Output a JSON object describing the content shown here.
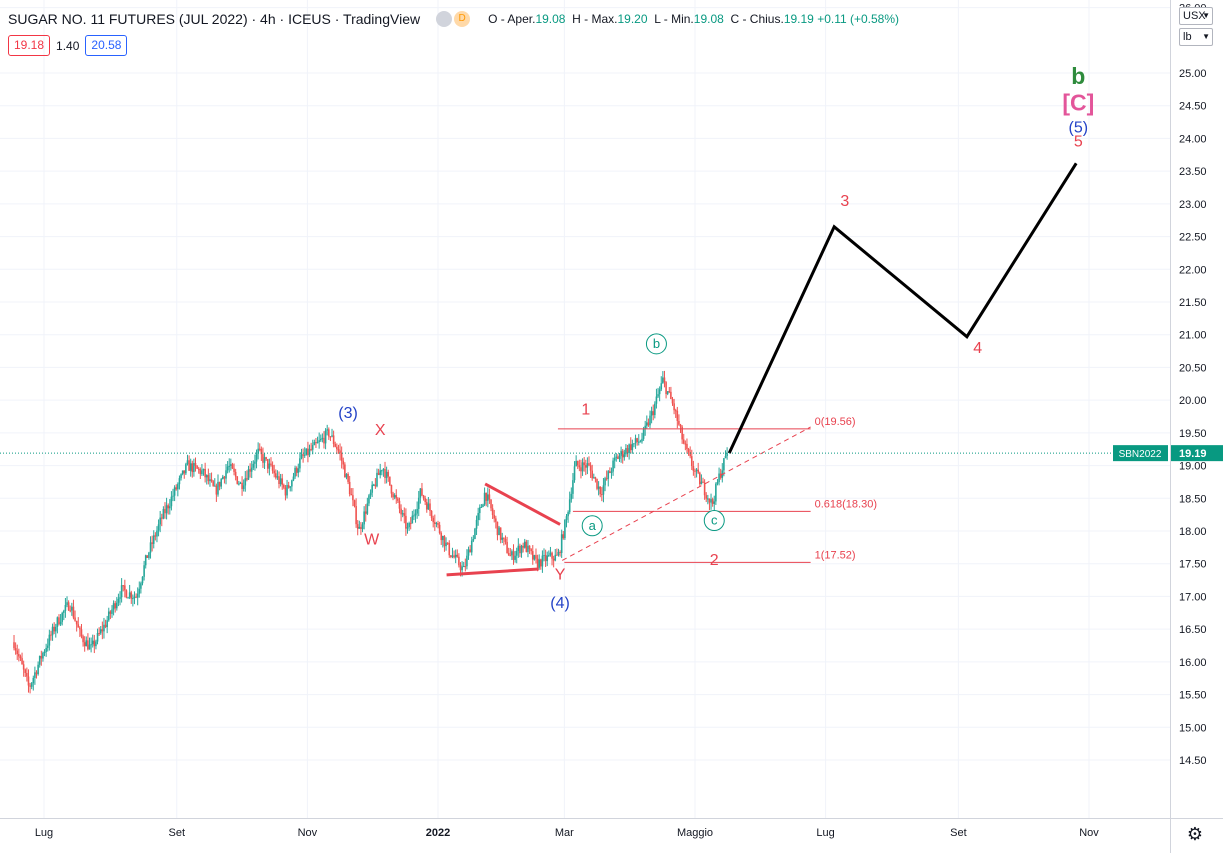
{
  "header": {
    "symbol_title": "SUGAR NO. 11 FUTURES (JUL 2022) · 4h · ICEUS · TradingView",
    "market_badge": "D",
    "ohlc_o_label": "O - Aper.",
    "ohlc_o": "19.08",
    "ohlc_h_label": "H - Max.",
    "ohlc_h": "19.20",
    "ohlc_l_label": "L - Min.",
    "ohlc_l": "19.08",
    "ohlc_c_label": "C - Chius.",
    "ohlc_c": "19.19",
    "ohlc_change": "+0.11 (+0.58%)"
  },
  "badges": {
    "bid": "19.18",
    "spread": "1.40",
    "ask": "20.58"
  },
  "scale": {
    "currency": "USX",
    "unit": "lb"
  },
  "price_tag": {
    "symbol": "SBN2022",
    "value": "19.19"
  },
  "chart_data": {
    "type": "candlestick",
    "y_range": [
      14.2,
      26.0
    ],
    "y_ticks": [
      "14.50",
      "15.00",
      "15.50",
      "16.00",
      "16.50",
      "17.00",
      "17.50",
      "18.00",
      "18.50",
      "19.00",
      "19.50",
      "20.00",
      "20.50",
      "21.00",
      "21.50",
      "22.00",
      "22.50",
      "23.00",
      "23.50",
      "24.00",
      "24.50",
      "25.00",
      "26.00"
    ],
    "x_range": [
      "2022-06-17",
      "2022-11-22"
    ],
    "x_ticks": [
      {
        "label": "Lug",
        "date": "2021-07-01"
      },
      {
        "label": "Set",
        "date": "2021-09-01"
      },
      {
        "label": "Nov",
        "date": "2021-11-01"
      },
      {
        "label": "2022",
        "date": "2022-01-01"
      },
      {
        "label": "Mar",
        "date": "2022-03-01"
      },
      {
        "label": "Maggio",
        "date": "2022-05-01"
      },
      {
        "label": "Lug",
        "date": "2022-07-01"
      },
      {
        "label": "Set",
        "date": "2022-09-01"
      },
      {
        "label": "Nov",
        "date": "2022-11-01"
      }
    ],
    "last_price": 19.19,
    "price_path": [
      [
        "2021-06-17",
        16.3
      ],
      [
        "2021-06-24",
        15.6
      ],
      [
        "2021-06-30",
        16.1
      ],
      [
        "2021-07-07",
        16.6
      ],
      [
        "2021-07-13",
        16.9
      ],
      [
        "2021-07-18",
        16.4
      ],
      [
        "2021-07-23",
        16.2
      ],
      [
        "2021-07-30",
        16.6
      ],
      [
        "2021-08-06",
        17.1
      ],
      [
        "2021-08-13",
        17.0
      ],
      [
        "2021-08-18",
        17.6
      ],
      [
        "2021-08-25",
        18.2
      ],
      [
        "2021-08-31",
        18.6
      ],
      [
        "2021-09-06",
        19.0
      ],
      [
        "2021-09-13",
        18.9
      ],
      [
        "2021-09-19",
        18.6
      ],
      [
        "2021-09-25",
        19.0
      ],
      [
        "2021-10-01",
        18.7
      ],
      [
        "2021-10-09",
        19.2
      ],
      [
        "2021-10-16",
        18.9
      ],
      [
        "2021-10-22",
        18.6
      ],
      [
        "2021-10-29",
        19.1
      ],
      [
        "2021-11-05",
        19.3
      ],
      [
        "2021-11-11",
        19.5
      ],
      [
        "2021-11-16",
        19.2
      ],
      [
        "2021-11-21",
        18.6
      ],
      [
        "2021-11-25",
        18.0
      ],
      [
        "2021-12-01",
        18.6
      ],
      [
        "2021-12-06",
        19.0
      ],
      [
        "2021-12-12",
        18.5
      ],
      [
        "2021-12-18",
        18.0
      ],
      [
        "2021-12-24",
        18.6
      ],
      [
        "2021-12-30",
        18.2
      ],
      [
        "2022-01-06",
        17.7
      ],
      [
        "2022-01-13",
        17.4
      ],
      [
        "2022-01-18",
        18.0
      ],
      [
        "2022-01-23",
        18.6
      ],
      [
        "2022-01-29",
        18.0
      ],
      [
        "2022-02-04",
        17.6
      ],
      [
        "2022-02-10",
        17.8
      ],
      [
        "2022-02-16",
        17.5
      ],
      [
        "2022-02-22",
        17.6
      ],
      [
        "2022-02-26",
        17.6
      ],
      [
        "2022-03-02",
        18.2
      ],
      [
        "2022-03-06",
        19.0
      ],
      [
        "2022-03-12",
        19.0
      ],
      [
        "2022-03-18",
        18.6
      ],
      [
        "2022-03-25",
        19.1
      ],
      [
        "2022-04-01",
        19.3
      ],
      [
        "2022-04-06",
        19.4
      ],
      [
        "2022-04-11",
        19.8
      ],
      [
        "2022-04-16",
        20.3
      ],
      [
        "2022-04-21",
        19.9
      ],
      [
        "2022-04-26",
        19.3
      ],
      [
        "2022-05-01",
        18.9
      ],
      [
        "2022-05-06",
        18.6
      ],
      [
        "2022-05-09",
        18.4
      ],
      [
        "2022-05-12",
        18.8
      ],
      [
        "2022-05-16",
        19.19
      ]
    ],
    "projection": [
      [
        "2022-05-17",
        19.19
      ],
      [
        "2022-07-05",
        22.65
      ],
      [
        "2022-09-05",
        20.97
      ],
      [
        "2022-10-26",
        23.62
      ]
    ],
    "triangle_lines": [
      {
        "from": [
          "2022-01-05",
          17.33
        ],
        "to": [
          "2022-02-17",
          17.42
        ]
      },
      {
        "from": [
          "2022-01-23",
          18.72
        ],
        "to": [
          "2022-02-27",
          18.1
        ]
      }
    ],
    "trend_line": {
      "from": [
        "2022-02-28",
        17.55
      ],
      "to": [
        "2022-06-24",
        19.59
      ]
    },
    "fib_levels": [
      {
        "label": "0(19.56)",
        "price": 19.56,
        "from": "2022-02-26",
        "to": "2022-06-24"
      },
      {
        "label": "0.618(18.30)",
        "price": 18.3,
        "from": "2022-03-05",
        "to": "2022-06-24"
      },
      {
        "label": "1(17.52)",
        "price": 17.52,
        "from": "2022-03-01",
        "to": "2022-06-24"
      }
    ],
    "wave_labels": [
      {
        "text": "(3)",
        "date": "2021-11-20",
        "price": 19.73,
        "color": "#2342c7"
      },
      {
        "text": "X",
        "date": "2021-12-05",
        "price": 19.47,
        "color": "#e8424f"
      },
      {
        "text": "W",
        "date": "2021-12-01",
        "price": 17.79,
        "color": "#e8424f"
      },
      {
        "text": "Y",
        "date": "2022-02-27",
        "price": 17.26,
        "color": "#e8424f"
      },
      {
        "text": "(4)",
        "date": "2022-02-27",
        "price": 16.82,
        "color": "#2342c7"
      },
      {
        "text": "1",
        "date": "2022-03-11",
        "price": 19.78,
        "color": "#e8424f"
      },
      {
        "text": "2",
        "date": "2022-05-10",
        "price": 17.48,
        "color": "#e8424f"
      },
      {
        "text": "3",
        "date": "2022-07-10",
        "price": 22.97,
        "color": "#e8424f"
      },
      {
        "text": "4",
        "date": "2022-09-10",
        "price": 20.72,
        "color": "#e8424f"
      },
      {
        "text": "5",
        "date": "2022-10-27",
        "price": 23.88,
        "color": "#e8424f"
      },
      {
        "text": "(5)",
        "date": "2022-10-27",
        "price": 24.09,
        "color": "#2342c7"
      },
      {
        "text": "[C]",
        "date": "2022-10-27",
        "price": 24.43,
        "color": "#e3559a"
      },
      {
        "text": "b",
        "date": "2022-10-27",
        "price": 24.83,
        "color": "#2e8b3c"
      }
    ],
    "circle_labels": [
      {
        "text": "b",
        "date": "2022-04-13",
        "price": 20.86
      },
      {
        "text": "a",
        "date": "2022-03-14",
        "price": 18.08
      },
      {
        "text": "c",
        "date": "2022-05-10",
        "price": 18.16
      }
    ]
  }
}
